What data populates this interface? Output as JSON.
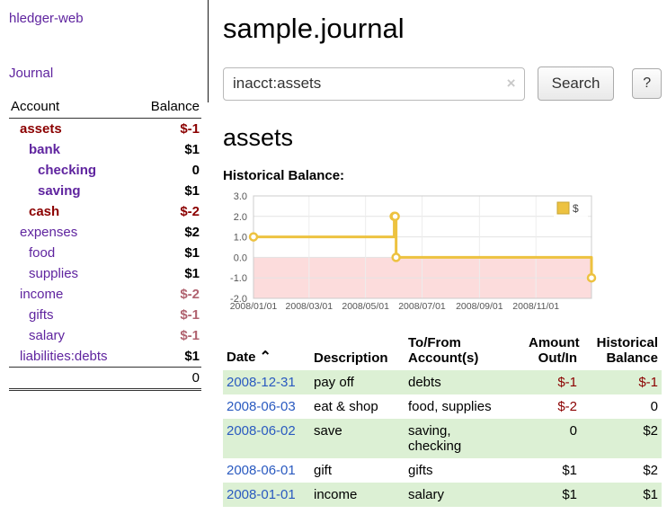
{
  "colors": {
    "link_purple": "#5f249f",
    "date_blue": "#2a5ac0",
    "negative_strong": "#8b0000",
    "negative_faded": "#b0626f",
    "row_green": "#dcf0d4",
    "chart_line_gold": "#edc240",
    "chart_negative_bg": "#fcdcdc"
  },
  "app": {
    "title": "hledger-web"
  },
  "sidebar": {
    "journal_link": "Journal",
    "accounts": {
      "header": {
        "account": "Account",
        "balance": "Balance"
      },
      "rows": [
        {
          "name": "assets",
          "balance": "$-1",
          "indent": 1,
          "strong": true,
          "negative": true
        },
        {
          "name": "bank",
          "balance": "$1",
          "indent": 2,
          "strong": true,
          "negative": false
        },
        {
          "name": "checking",
          "balance": "0",
          "indent": 3,
          "strong": true,
          "negative": false
        },
        {
          "name": "saving",
          "balance": "$1",
          "indent": 3,
          "strong": true,
          "negative": false
        },
        {
          "name": "cash",
          "balance": "$-2",
          "indent": 2,
          "strong": true,
          "negative": true
        },
        {
          "name": "expenses",
          "balance": "$2",
          "indent": 1,
          "strong": false,
          "negative": false
        },
        {
          "name": "food",
          "balance": "$1",
          "indent": 2,
          "strong": false,
          "negative": false
        },
        {
          "name": "supplies",
          "balance": "$1",
          "indent": 2,
          "strong": false,
          "negative": false
        },
        {
          "name": "income",
          "balance": "$-2",
          "indent": 1,
          "strong": false,
          "negative": true
        },
        {
          "name": "gifts",
          "balance": "$-1",
          "indent": 2,
          "strong": false,
          "negative": true
        },
        {
          "name": "salary",
          "balance": "$-1",
          "indent": 2,
          "strong": false,
          "negative": true
        },
        {
          "name": "liabilities:debts",
          "balance": "$1",
          "indent": 1,
          "strong": false,
          "negative": false
        }
      ],
      "total": "0"
    }
  },
  "main": {
    "title": "sample.journal",
    "search": {
      "value": "inacct:assets",
      "clear_icon": "×",
      "button_label": "Search",
      "help_label": "?"
    },
    "account_heading": "assets",
    "chart_label": "Historical Balance:"
  },
  "chart_data": {
    "type": "line",
    "step": true,
    "title": "Historical Balance",
    "series": [
      {
        "name": "$",
        "color": "#edc240",
        "points": [
          [
            "2008/01/01",
            1
          ],
          [
            "2008/06/01",
            2
          ],
          [
            "2008/06/02",
            2
          ],
          [
            "2008/06/03",
            0
          ],
          [
            "2008/12/31",
            -1
          ]
        ]
      }
    ],
    "ylim": [
      -2,
      3
    ],
    "yticks": [
      3.0,
      2.0,
      1.0,
      0.0,
      -1.0,
      -2.0
    ],
    "ytick_labels": [
      "3.0",
      "2.0",
      "1.0",
      "0.0",
      "-1.0",
      "-2.0"
    ],
    "xrange": [
      "2008/01/01",
      "2008/12/31"
    ],
    "xticks": [
      "2008/01/01",
      "2008/03/01",
      "2008/05/01",
      "2008/07/01",
      "2008/09/01",
      "2008/11/01"
    ],
    "legend_position": "top-right",
    "negative_region_color": "#fcdcdc",
    "grid": true
  },
  "register": {
    "sort_icon": "⌃",
    "headers": [
      {
        "line1": "Date",
        "line2": ""
      },
      {
        "line1": "Description",
        "line2": ""
      },
      {
        "line1": "To/From",
        "line2": "Account(s)"
      },
      {
        "line1": "Amount",
        "line2": "Out/In"
      },
      {
        "line1": "Historical",
        "line2": "Balance"
      }
    ],
    "rows": [
      {
        "date": "2008-12-31",
        "description": "pay off",
        "accounts": "debts",
        "amount": "$-1",
        "amount_negative": true,
        "balance": "$-1",
        "balance_negative": true
      },
      {
        "date": "2008-06-03",
        "description": "eat & shop",
        "accounts": "food, supplies",
        "amount": "$-2",
        "amount_negative": true,
        "balance": "0",
        "balance_negative": false
      },
      {
        "date": "2008-06-02",
        "description": "save",
        "accounts": "saving,\nchecking",
        "amount": "0",
        "amount_negative": false,
        "balance": "$2",
        "balance_negative": false
      },
      {
        "date": "2008-06-01",
        "description": "gift",
        "accounts": "gifts",
        "amount": "$1",
        "amount_negative": false,
        "balance": "$2",
        "balance_negative": false
      },
      {
        "date": "2008-01-01",
        "description": "income",
        "accounts": "salary",
        "amount": "$1",
        "amount_negative": false,
        "balance": "$1",
        "balance_negative": false
      }
    ]
  }
}
